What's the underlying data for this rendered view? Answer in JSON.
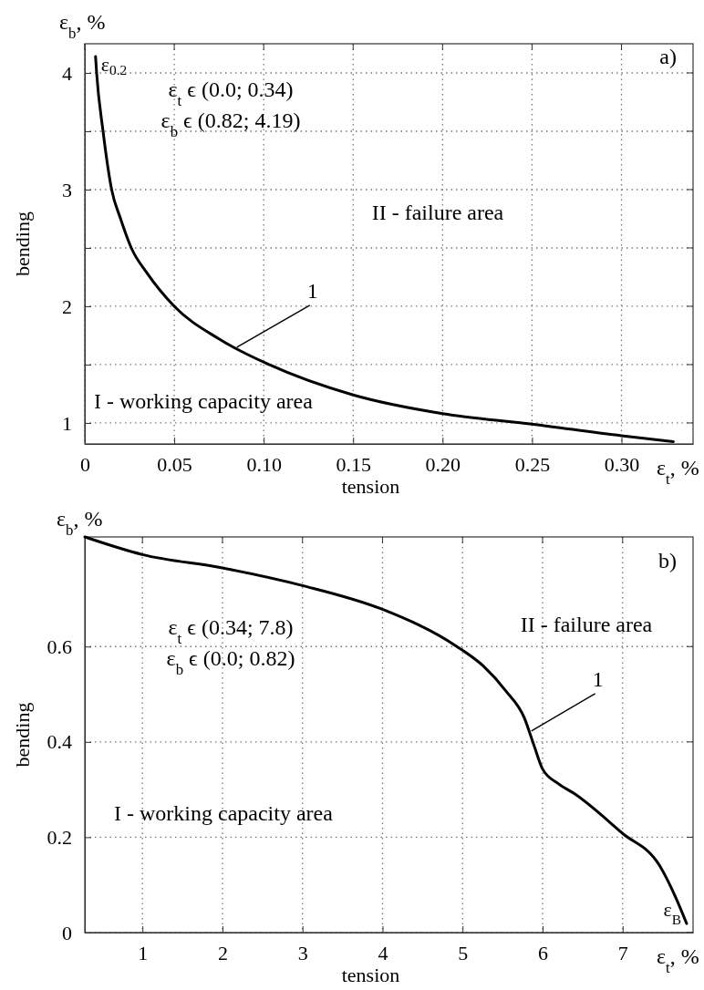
{
  "chart_data": [
    {
      "type": "line",
      "xlabel": "tension",
      "ylabel": "bending",
      "xlim": [
        0,
        0.34
      ],
      "xticks": [
        0,
        0.05,
        {
          "value": 0.1,
          "label": "0.10"
        },
        0.15,
        {
          "value": 0.2,
          "label": "0.20"
        },
        0.25,
        {
          "value": 0.3,
          "label": "0.30"
        }
      ],
      "ylim": [
        0.82,
        4.25
      ],
      "yticks": [
        1,
        {
          "value": 1.5,
          "label": null
        },
        2,
        {
          "value": 2.5,
          "label": null
        },
        3,
        {
          "value": 3.5,
          "label": null
        },
        4
      ],
      "grid": true,
      "marker": "none",
      "line_style": "solid",
      "series": [
        {
          "color": "#000000",
          "x": [
            0.006,
            0.0066,
            0.0102,
            0.015,
            0.02,
            0.026,
            0.035,
            0.05,
            0.075,
            0.103,
            0.15,
            0.2,
            0.25,
            0.3,
            0.329
          ],
          "values": [
            4.14,
            4.0,
            3.5,
            3.0,
            2.75,
            2.5,
            2.28,
            2.0,
            1.72,
            1.5,
            1.24,
            1.08,
            0.99,
            0.89,
            0.84
          ]
        }
      ],
      "annotations": [
        "ε$_{b}$, %",
        "ε$_{t}$, %",
        "a)",
        "ε$_{t}$ ϵ (0.0; 0.34)",
        "ε$_{b}$ ϵ (0.82; 4.19)",
        "II - failure area",
        "I - working capacity area",
        {
          "text": "ε$_{0.2}$",
          "x": 0.006,
          "y": 4.14
        },
        {
          "text": "1",
          "x": 0.085,
          "y": 1.65
        }
      ]
    },
    {
      "type": "line",
      "xlabel": "tension",
      "ylabel": "bending",
      "xlim": [
        0.28,
        7.88
      ],
      "xticks": [
        1,
        2,
        3,
        4,
        5,
        6,
        7
      ],
      "ylim": [
        0,
        0.83
      ],
      "yticks": [
        0,
        0.2,
        0.4,
        0.6
      ],
      "grid": true,
      "marker": "none",
      "line_style": "solid",
      "series": [
        {
          "color": "#000000",
          "x": [
            0.28,
            1,
            2,
            3,
            4,
            4.92,
            5.26,
            5.54,
            5.77,
            5.89,
            6.0,
            6.2,
            6.4,
            7.0,
            7.46,
            7.66,
            7.8
          ],
          "values": [
            0.83,
            0.793,
            0.765,
            0.728,
            0.678,
            0.601,
            0.559,
            0.507,
            0.451,
            0.394,
            0.343,
            0.312,
            0.291,
            0.208,
            0.141,
            0.075,
            0.019
          ]
        }
      ],
      "annotations": [
        "ε$_{b}$, %",
        "ε$_{t}$, %",
        "b)",
        "ε$_{t}$ ϵ (0.34; 7.8)",
        "ε$_{b}$ ϵ (0.0; 0.82)",
        "II - failure area",
        "I - working capacity area",
        {
          "text": "ε$_{B}$",
          "x": 7.8,
          "y": 0.019
        },
        {
          "text": "1",
          "x": 5.86,
          "y": 0.423
        }
      ]
    }
  ]
}
